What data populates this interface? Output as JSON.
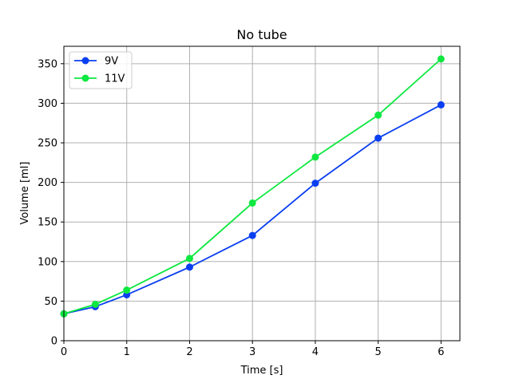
{
  "chart_data": {
    "type": "line",
    "title": "No tube",
    "xlabel": "Time [s]",
    "ylabel": "Volume [ml]",
    "xlim": [
      0,
      6.3
    ],
    "ylim": [
      0,
      372
    ],
    "xticks": [
      0,
      1,
      2,
      3,
      4,
      5,
      6
    ],
    "yticks": [
      0,
      50,
      100,
      150,
      200,
      250,
      300,
      350
    ],
    "grid": true,
    "legend_position": "top-left",
    "series": [
      {
        "name": "9V",
        "color": "#0a3ff0",
        "x": [
          0,
          0.5,
          1,
          2,
          3,
          4,
          5,
          6
        ],
        "y": [
          34,
          43,
          58,
          93,
          133,
          199,
          256,
          298
        ]
      },
      {
        "name": "11V",
        "color": "#0ee840",
        "x": [
          0,
          0.5,
          1,
          2,
          3,
          4,
          5,
          6
        ],
        "y": [
          34,
          46,
          64,
          104,
          174,
          232,
          285,
          356
        ]
      }
    ]
  }
}
